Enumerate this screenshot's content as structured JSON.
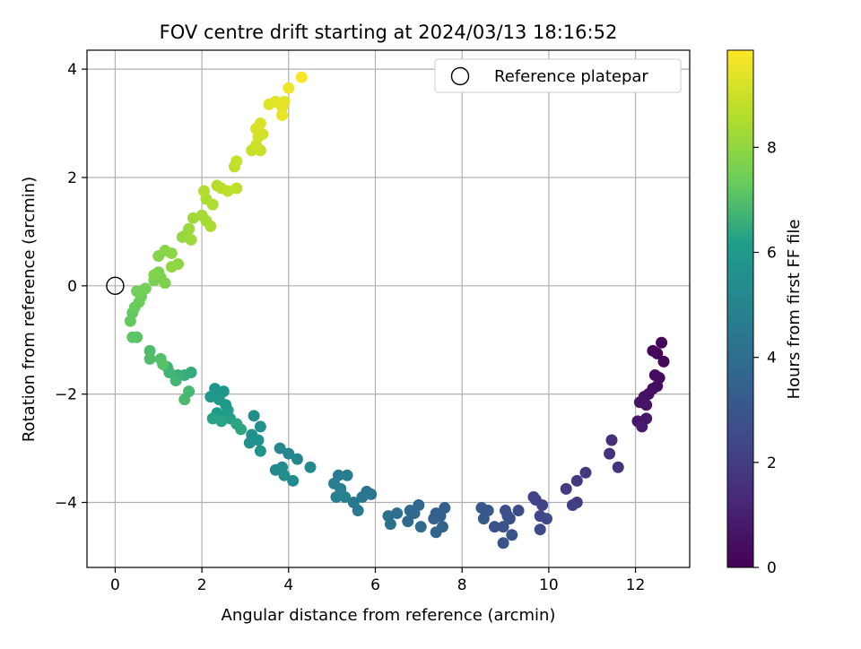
{
  "chart_data": {
    "type": "scatter",
    "title": "FOV centre drift starting at 2024/03/13 18:16:52",
    "xlabel": "Angular distance from reference (arcmin)",
    "ylabel": "Rotation from reference (arcmin)",
    "xlim": [
      -0.65,
      13.25
    ],
    "ylim": [
      -5.2,
      4.35
    ],
    "xticks": [
      0,
      2,
      4,
      6,
      8,
      10,
      12
    ],
    "yticks": [
      -4,
      -2,
      0,
      2,
      4
    ],
    "grid": true,
    "legend": {
      "position": "top-right",
      "entries": [
        "Reference platepar"
      ]
    },
    "reference_point": {
      "x": 0,
      "y": 0,
      "label": "Reference platepar"
    },
    "colorbar": {
      "label": "Hours from first FF file",
      "colormap": "viridis",
      "range": [
        0,
        9.85
      ],
      "ticks": [
        0,
        2,
        4,
        6,
        8
      ]
    },
    "points": [
      [
        12.6,
        -1.05,
        0.1
      ],
      [
        12.4,
        -1.2,
        0.15
      ],
      [
        12.5,
        -1.25,
        0.2
      ],
      [
        12.65,
        -1.4,
        0.25
      ],
      [
        12.45,
        -1.65,
        0.3
      ],
      [
        12.55,
        -1.7,
        0.35
      ],
      [
        12.5,
        -1.85,
        0.4
      ],
      [
        12.4,
        -1.9,
        0.45
      ],
      [
        12.3,
        -2.0,
        0.5
      ],
      [
        12.2,
        -2.05,
        0.55
      ],
      [
        12.1,
        -2.15,
        0.6
      ],
      [
        12.25,
        -2.2,
        0.65
      ],
      [
        12.05,
        -2.5,
        0.7
      ],
      [
        12.25,
        -2.45,
        0.75
      ],
      [
        12.15,
        -2.6,
        0.8
      ],
      [
        11.45,
        -2.85,
        1.5
      ],
      [
        11.4,
        -3.1,
        1.6
      ],
      [
        11.6,
        -3.35,
        1.65
      ],
      [
        10.85,
        -3.45,
        1.8
      ],
      [
        10.65,
        -3.6,
        1.85
      ],
      [
        10.4,
        -3.75,
        1.9
      ],
      [
        10.65,
        -4.0,
        2.0
      ],
      [
        10.55,
        -4.05,
        2.05
      ],
      [
        9.65,
        -3.9,
        2.2
      ],
      [
        9.7,
        -3.95,
        2.25
      ],
      [
        9.85,
        -4.05,
        2.3
      ],
      [
        9.8,
        -4.25,
        2.35
      ],
      [
        9.95,
        -4.3,
        2.4
      ],
      [
        9.8,
        -4.5,
        2.45
      ],
      [
        9.3,
        -4.15,
        2.6
      ],
      [
        9.0,
        -4.15,
        2.65
      ],
      [
        9.05,
        -4.25,
        2.7
      ],
      [
        9.1,
        -4.3,
        2.75
      ],
      [
        8.95,
        -4.45,
        2.8
      ],
      [
        8.75,
        -4.45,
        2.85
      ],
      [
        9.15,
        -4.6,
        2.9
      ],
      [
        8.95,
        -4.75,
        2.95
      ],
      [
        8.45,
        -4.1,
        3.0
      ],
      [
        8.6,
        -4.15,
        3.05
      ],
      [
        8.5,
        -4.3,
        3.1
      ],
      [
        7.6,
        -4.1,
        3.3
      ],
      [
        7.4,
        -4.2,
        3.35
      ],
      [
        7.5,
        -4.25,
        3.4
      ],
      [
        7.35,
        -4.3,
        3.45
      ],
      [
        7.55,
        -4.45,
        3.5
      ],
      [
        7.4,
        -4.55,
        3.55
      ],
      [
        7.0,
        -4.05,
        3.7
      ],
      [
        6.8,
        -4.15,
        3.75
      ],
      [
        6.9,
        -4.2,
        3.8
      ],
      [
        6.75,
        -4.35,
        3.85
      ],
      [
        7.05,
        -4.45,
        3.9
      ],
      [
        6.5,
        -4.2,
        4.0
      ],
      [
        6.3,
        -4.25,
        4.05
      ],
      [
        6.35,
        -4.4,
        4.1
      ],
      [
        5.8,
        -3.8,
        4.3
      ],
      [
        5.9,
        -3.85,
        4.35
      ],
      [
        5.7,
        -3.9,
        4.4
      ],
      [
        5.5,
        -4.0,
        4.45
      ],
      [
        5.6,
        -4.15,
        4.5
      ],
      [
        5.15,
        -3.5,
        4.6
      ],
      [
        5.35,
        -3.5,
        4.65
      ],
      [
        5.05,
        -3.65,
        4.7
      ],
      [
        5.2,
        -3.75,
        4.75
      ],
      [
        5.1,
        -3.9,
        4.8
      ],
      [
        5.3,
        -3.9,
        4.85
      ],
      [
        3.8,
        -3.0,
        5.0
      ],
      [
        4.0,
        -3.1,
        5.05
      ],
      [
        4.2,
        -3.2,
        5.1
      ],
      [
        4.5,
        -3.35,
        5.15
      ],
      [
        3.7,
        -3.4,
        5.2
      ],
      [
        3.85,
        -3.35,
        5.25
      ],
      [
        4.1,
        -3.6,
        5.3
      ],
      [
        3.9,
        -3.5,
        5.35
      ],
      [
        3.2,
        -2.4,
        5.5
      ],
      [
        3.35,
        -2.6,
        5.55
      ],
      [
        3.15,
        -2.75,
        5.6
      ],
      [
        3.3,
        -2.85,
        5.65
      ],
      [
        3.1,
        -2.9,
        5.7
      ],
      [
        3.35,
        -3.05,
        5.75
      ],
      [
        2.3,
        -1.9,
        5.8
      ],
      [
        2.5,
        -1.95,
        5.85
      ],
      [
        2.2,
        -2.05,
        5.9
      ],
      [
        2.4,
        -2.1,
        5.95
      ],
      [
        2.55,
        -2.2,
        6.0
      ],
      [
        2.6,
        -2.3,
        6.05
      ],
      [
        2.35,
        -2.35,
        6.1
      ],
      [
        2.5,
        -2.4,
        6.15
      ],
      [
        2.65,
        -2.45,
        6.2
      ],
      [
        2.25,
        -2.45,
        6.25
      ],
      [
        2.45,
        -2.5,
        6.3
      ],
      [
        2.8,
        -2.55,
        6.35
      ],
      [
        2.9,
        -2.65,
        6.4
      ],
      [
        1.75,
        -1.6,
        6.5
      ],
      [
        1.6,
        -1.65,
        6.55
      ],
      [
        1.45,
        -1.65,
        6.6
      ],
      [
        1.2,
        -1.5,
        6.65
      ],
      [
        1.25,
        -1.6,
        6.7
      ],
      [
        1.4,
        -1.75,
        6.75
      ],
      [
        1.7,
        -1.95,
        6.8
      ],
      [
        1.6,
        -2.1,
        6.85
      ],
      [
        0.8,
        -1.2,
        6.9
      ],
      [
        0.8,
        -1.35,
        6.95
      ],
      [
        1.05,
        -1.35,
        7.0
      ],
      [
        1.1,
        -1.45,
        7.05
      ],
      [
        0.5,
        -0.95,
        7.1
      ],
      [
        0.4,
        -0.95,
        7.15
      ],
      [
        0.4,
        -0.5,
        7.2
      ],
      [
        0.35,
        -0.65,
        7.25
      ],
      [
        0.45,
        -0.4,
        7.3
      ],
      [
        0.55,
        -0.3,
        7.35
      ],
      [
        0.6,
        -0.2,
        7.4
      ],
      [
        0.5,
        -0.1,
        7.45
      ],
      [
        0.7,
        -0.05,
        7.5
      ],
      [
        0.9,
        0.1,
        7.55
      ],
      [
        1.05,
        0.15,
        7.6
      ],
      [
        1.0,
        0.25,
        7.65
      ],
      [
        1.15,
        0.05,
        7.7
      ],
      [
        0.9,
        0.2,
        7.75
      ],
      [
        1.0,
        0.55,
        7.8
      ],
      [
        1.15,
        0.65,
        7.85
      ],
      [
        1.3,
        0.6,
        7.9
      ],
      [
        1.45,
        0.4,
        7.95
      ],
      [
        1.3,
        0.35,
        8.0
      ],
      [
        1.55,
        0.9,
        8.05
      ],
      [
        1.65,
        0.95,
        8.1
      ],
      [
        1.7,
        1.05,
        8.15
      ],
      [
        1.75,
        0.85,
        8.2
      ],
      [
        1.8,
        1.25,
        8.25
      ],
      [
        2.0,
        1.3,
        8.3
      ],
      [
        2.1,
        1.2,
        8.35
      ],
      [
        2.2,
        1.1,
        8.4
      ],
      [
        2.1,
        1.6,
        8.45
      ],
      [
        2.25,
        1.5,
        8.5
      ],
      [
        2.05,
        1.75,
        8.55
      ],
      [
        2.35,
        1.85,
        8.6
      ],
      [
        2.45,
        1.8,
        8.65
      ],
      [
        2.6,
        1.75,
        8.7
      ],
      [
        2.8,
        1.8,
        8.75
      ],
      [
        2.75,
        2.2,
        8.8
      ],
      [
        2.8,
        2.3,
        8.85
      ],
      [
        3.15,
        2.5,
        8.9
      ],
      [
        3.35,
        2.5,
        8.95
      ],
      [
        3.25,
        2.6,
        9.0
      ],
      [
        3.3,
        2.75,
        9.05
      ],
      [
        3.4,
        2.8,
        9.1
      ],
      [
        3.25,
        2.9,
        9.15
      ],
      [
        3.35,
        3.0,
        9.2
      ],
      [
        3.55,
        3.35,
        9.3
      ],
      [
        3.7,
        3.4,
        9.35
      ],
      [
        3.9,
        3.4,
        9.4
      ],
      [
        3.85,
        3.3,
        9.45
      ],
      [
        3.85,
        3.15,
        9.5
      ],
      [
        4.0,
        3.65,
        9.6
      ],
      [
        4.3,
        3.85,
        9.75
      ]
    ]
  }
}
